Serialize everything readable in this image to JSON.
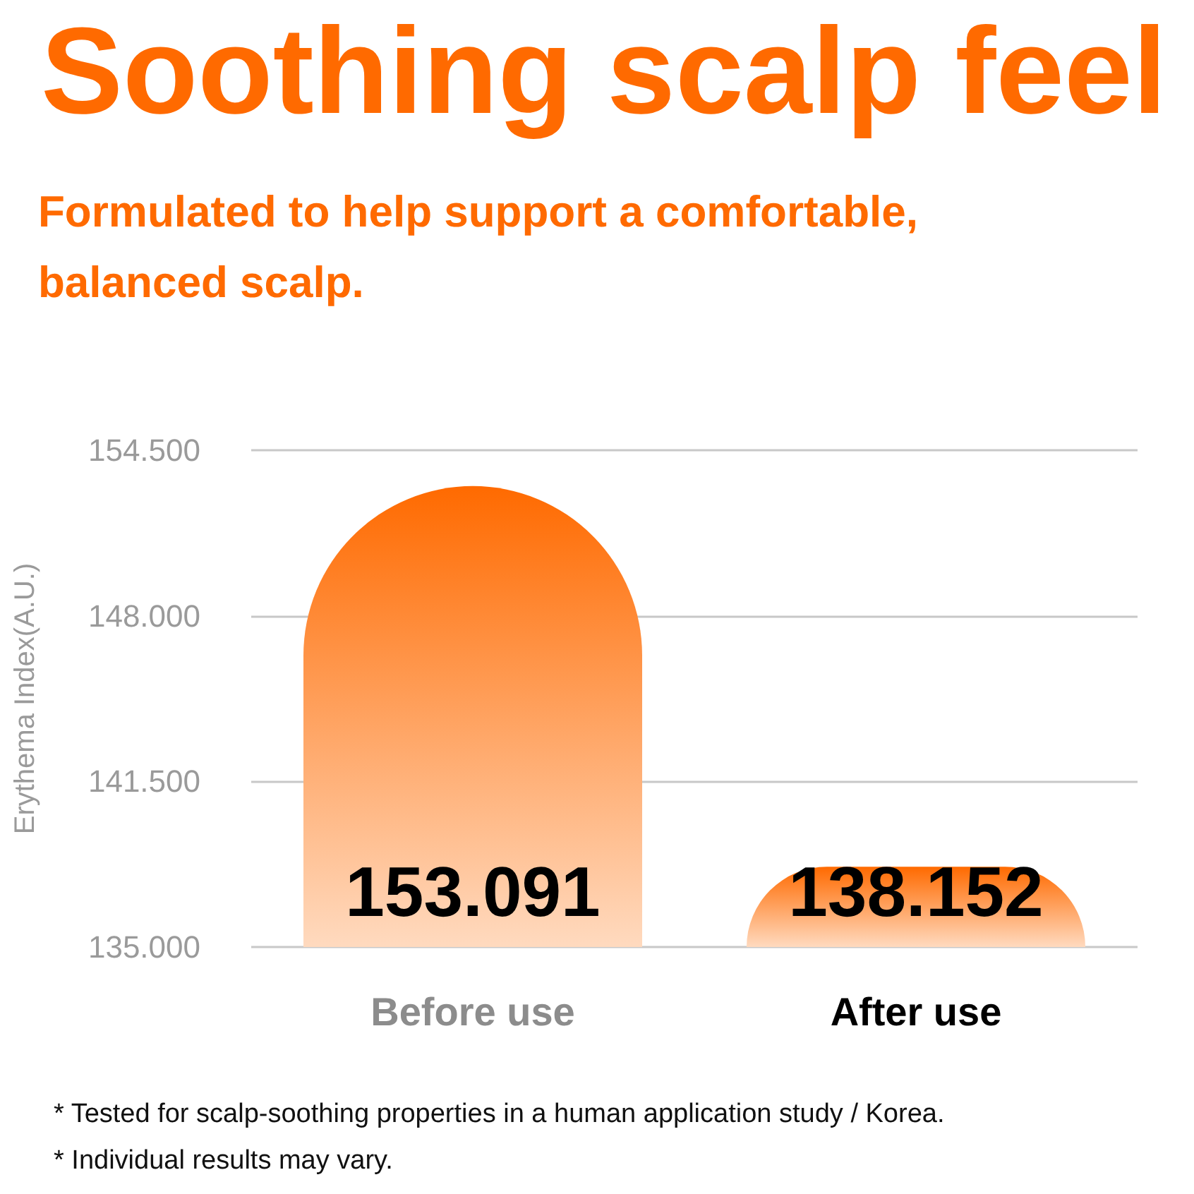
{
  "chart_data": {
    "type": "bar",
    "title": "Soothing scalp feel",
    "subtitle": "Formulated to help support a comfortable, balanced scalp.",
    "ylabel": "Erythema Index(A.U.)",
    "categories": [
      "Before use",
      "After use"
    ],
    "values": [
      153.091,
      138.152
    ],
    "color": "#ff6a00",
    "ylim": [
      135,
      154.5
    ],
    "yticks": [
      {
        "value": 135,
        "label": "135.000"
      },
      {
        "value": 141.5,
        "label": "141.500"
      },
      {
        "value": 148,
        "label": "148.000"
      },
      {
        "value": 154.5,
        "label": "154.500"
      }
    ],
    "grid": "y",
    "data_labels": true,
    "annotations": [
      "* Tested for scalp-soothing properties in a human application study / Korea.",
      "* Individual results may vary."
    ]
  }
}
